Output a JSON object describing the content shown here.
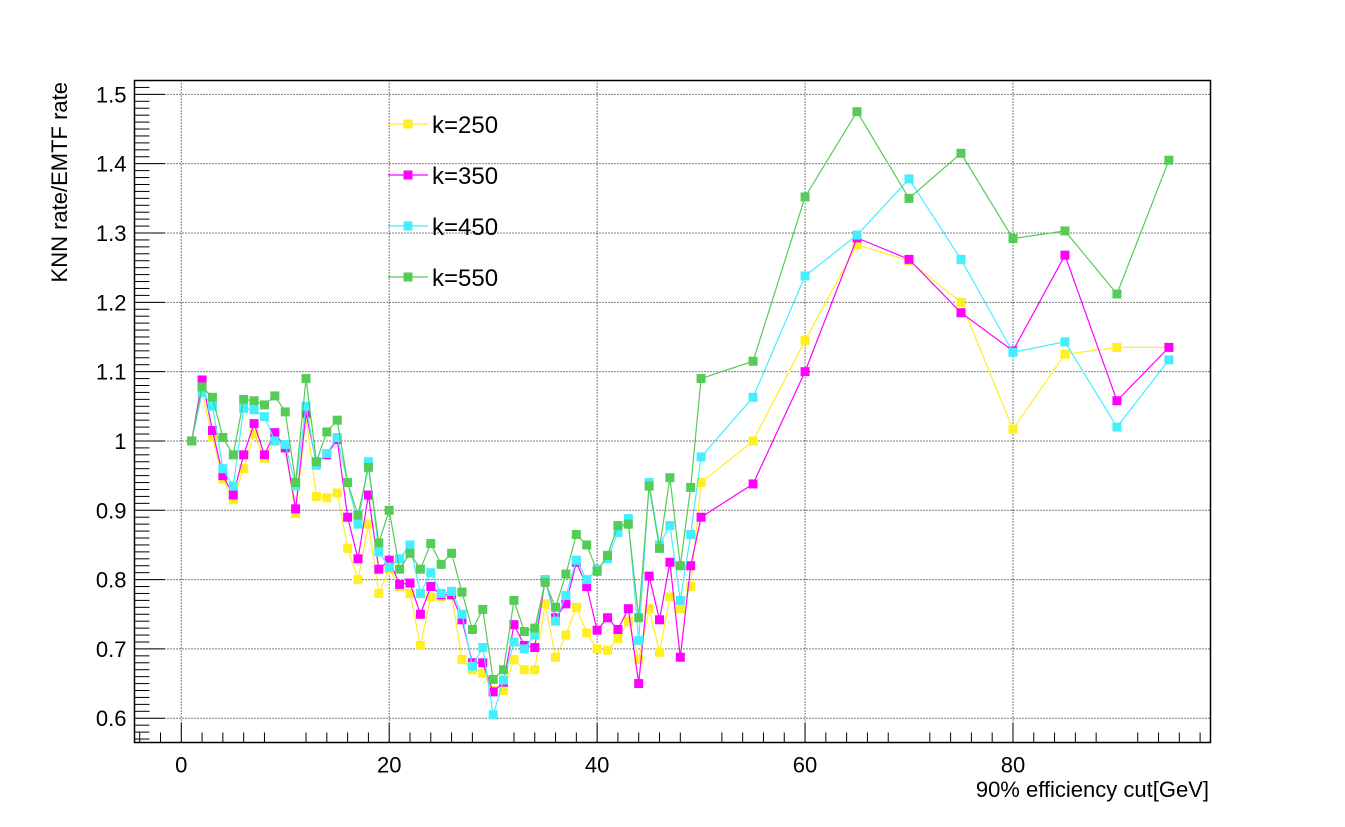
{
  "chart_data": {
    "type": "line",
    "title": "",
    "xlabel": "90% efficiency cut[GeV]",
    "ylabel": "KNN rate/EMTF rate",
    "xlim": [
      -4.5,
      99
    ],
    "ylim": [
      0.565,
      1.52
    ],
    "x_ticks": [
      0,
      20,
      40,
      60,
      80
    ],
    "x_tick_labels": [
      "0",
      "20",
      "40",
      "60",
      "80"
    ],
    "y_ticks": [
      0.6,
      0.7,
      0.8,
      0.9,
      1.0,
      1.1,
      1.2,
      1.3,
      1.4,
      1.5
    ],
    "y_tick_labels": [
      "0.6",
      "0.7",
      "0.8",
      "0.9",
      "1",
      "1.1",
      "1.2",
      "1.3",
      "1.4",
      "1.5"
    ],
    "grid": true,
    "legend_position": "top-left",
    "x": [
      1,
      2,
      3,
      4,
      5,
      6,
      7,
      8,
      9,
      10,
      11,
      12,
      13,
      14,
      15,
      16,
      17,
      18,
      19,
      20,
      21,
      22,
      23,
      24,
      25,
      26,
      27,
      28,
      29,
      30,
      31,
      32,
      33,
      34,
      35,
      36,
      37,
      38,
      39,
      40,
      41,
      42,
      43,
      44,
      45,
      46,
      47,
      48,
      49,
      50,
      55,
      60,
      65,
      70,
      75,
      80,
      85,
      90,
      95
    ],
    "series": [
      {
        "name": "k=250",
        "color": "#ffee22",
        "values": [
          1.0,
          1.07,
          1.005,
          0.945,
          0.915,
          0.96,
          1.01,
          0.975,
          1.0,
          0.99,
          0.895,
          1.035,
          0.92,
          0.918,
          0.925,
          0.845,
          0.8,
          0.88,
          0.78,
          0.815,
          0.79,
          0.78,
          0.705,
          0.775,
          0.775,
          0.778,
          0.685,
          0.67,
          0.665,
          0.64,
          0.64,
          0.685,
          0.67,
          0.67,
          0.765,
          0.688,
          0.72,
          0.76,
          0.723,
          0.7,
          0.698,
          0.715,
          0.74,
          0.685,
          0.758,
          0.695,
          0.775,
          0.758,
          0.79,
          0.94,
          1.0,
          1.145,
          1.283,
          1.26,
          1.2,
          1.017,
          1.125,
          1.135,
          1.135
        ]
      },
      {
        "name": "k=350",
        "color": "#ff00ff",
        "values": [
          1.0,
          1.088,
          1.015,
          0.95,
          0.922,
          0.98,
          1.025,
          0.98,
          1.012,
          0.99,
          0.902,
          1.04,
          0.968,
          0.98,
          1.002,
          0.89,
          0.83,
          0.922,
          0.815,
          0.828,
          0.793,
          0.795,
          0.75,
          0.79,
          0.778,
          0.778,
          0.742,
          0.68,
          0.68,
          0.638,
          0.652,
          0.735,
          0.705,
          0.702,
          0.8,
          0.745,
          0.765,
          0.825,
          0.79,
          0.727,
          0.745,
          0.728,
          0.758,
          0.65,
          0.805,
          0.742,
          0.825,
          0.688,
          0.82,
          0.89,
          0.938,
          1.1,
          1.293,
          1.262,
          1.185,
          1.13,
          1.268,
          1.058,
          1.135
        ]
      },
      {
        "name": "k=450",
        "color": "#44eeff",
        "values": [
          1.0,
          1.07,
          1.05,
          0.96,
          0.935,
          1.047,
          1.045,
          1.035,
          1.0,
          0.995,
          0.935,
          1.05,
          0.965,
          0.982,
          1.005,
          0.94,
          0.88,
          0.97,
          0.84,
          0.818,
          0.83,
          0.85,
          0.78,
          0.81,
          0.78,
          0.783,
          0.75,
          0.675,
          0.702,
          0.605,
          0.655,
          0.71,
          0.7,
          0.72,
          0.8,
          0.74,
          0.777,
          0.828,
          0.8,
          0.815,
          0.83,
          0.868,
          0.888,
          0.712,
          0.94,
          0.85,
          0.878,
          0.77,
          0.865,
          0.977,
          1.063,
          1.238,
          1.297,
          1.378,
          1.262,
          1.128,
          1.143,
          1.02,
          1.117
        ]
      },
      {
        "name": "k=550",
        "color": "#55cc55",
        "values": [
          1.0,
          1.078,
          1.063,
          1.005,
          0.98,
          1.06,
          1.058,
          1.052,
          1.065,
          1.042,
          0.94,
          1.09,
          0.97,
          1.013,
          1.03,
          0.94,
          0.893,
          0.962,
          0.853,
          0.9,
          0.815,
          0.838,
          0.815,
          0.852,
          0.822,
          0.838,
          0.782,
          0.728,
          0.757,
          0.656,
          0.67,
          0.77,
          0.725,
          0.73,
          0.796,
          0.76,
          0.808,
          0.865,
          0.85,
          0.812,
          0.835,
          0.878,
          0.88,
          0.745,
          0.935,
          0.845,
          0.947,
          0.82,
          0.933,
          1.09,
          1.115,
          1.352,
          1.475,
          1.35,
          1.415,
          1.292,
          1.303,
          1.212,
          1.405
        ]
      }
    ]
  }
}
